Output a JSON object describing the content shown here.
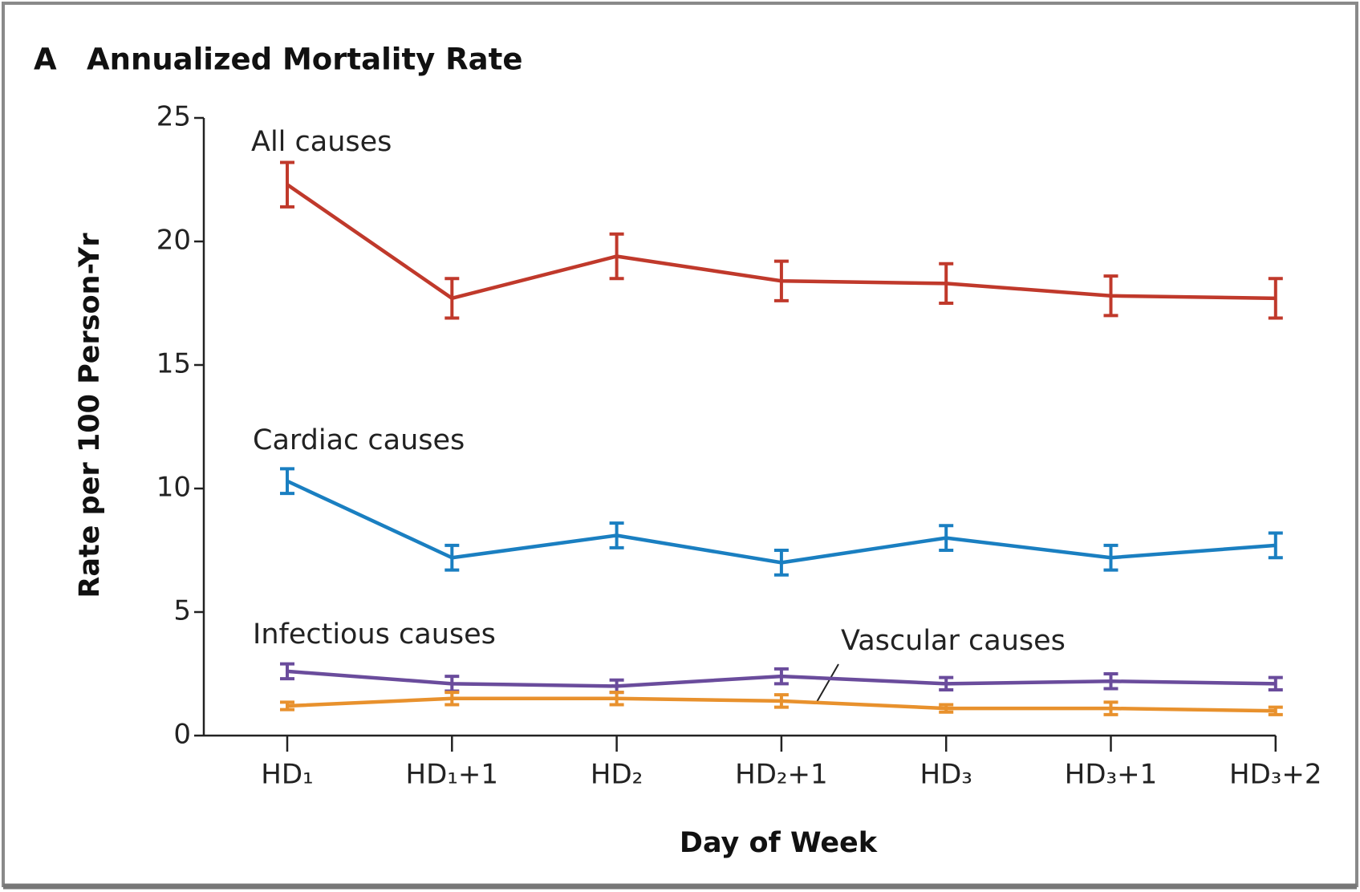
{
  "chart_data": {
    "type": "line",
    "panel_label": "A",
    "title": "Annualized Mortality Rate",
    "y_label": "Rate per 100 Person-Yr",
    "x_label": "Day of Week",
    "categories": [
      "HD₁",
      "HD₁+1",
      "HD₂",
      "HD₂+1",
      "HD₃",
      "HD₃+1",
      "HD₃+2"
    ],
    "series": [
      {
        "name": "All causes",
        "color": "#c0392b",
        "values": [
          22.3,
          17.7,
          19.4,
          18.4,
          18.3,
          17.8,
          17.7
        ],
        "errors": [
          0.9,
          0.8,
          0.9,
          0.8,
          0.8,
          0.8,
          0.8
        ]
      },
      {
        "name": "Cardiac causes",
        "color": "#1a7fc1",
        "values": [
          10.3,
          7.2,
          8.1,
          7.0,
          8.0,
          7.2,
          7.7
        ],
        "errors": [
          0.5,
          0.5,
          0.5,
          0.5,
          0.5,
          0.5,
          0.5
        ]
      },
      {
        "name": "Infectious causes",
        "color": "#6a4c9c",
        "values": [
          2.6,
          2.1,
          2.0,
          2.4,
          2.1,
          2.2,
          2.1
        ],
        "errors": [
          0.3,
          0.3,
          0.25,
          0.3,
          0.25,
          0.3,
          0.25
        ]
      },
      {
        "name": "Vascular causes",
        "color": "#e8912d",
        "values": [
          1.2,
          1.5,
          1.5,
          1.4,
          1.1,
          1.1,
          1.0
        ],
        "errors": [
          0.15,
          0.25,
          0.25,
          0.25,
          0.15,
          0.25,
          0.15
        ]
      }
    ],
    "ylim": [
      0,
      25
    ],
    "yticks": [
      0,
      5,
      10,
      15,
      20,
      25
    ]
  }
}
